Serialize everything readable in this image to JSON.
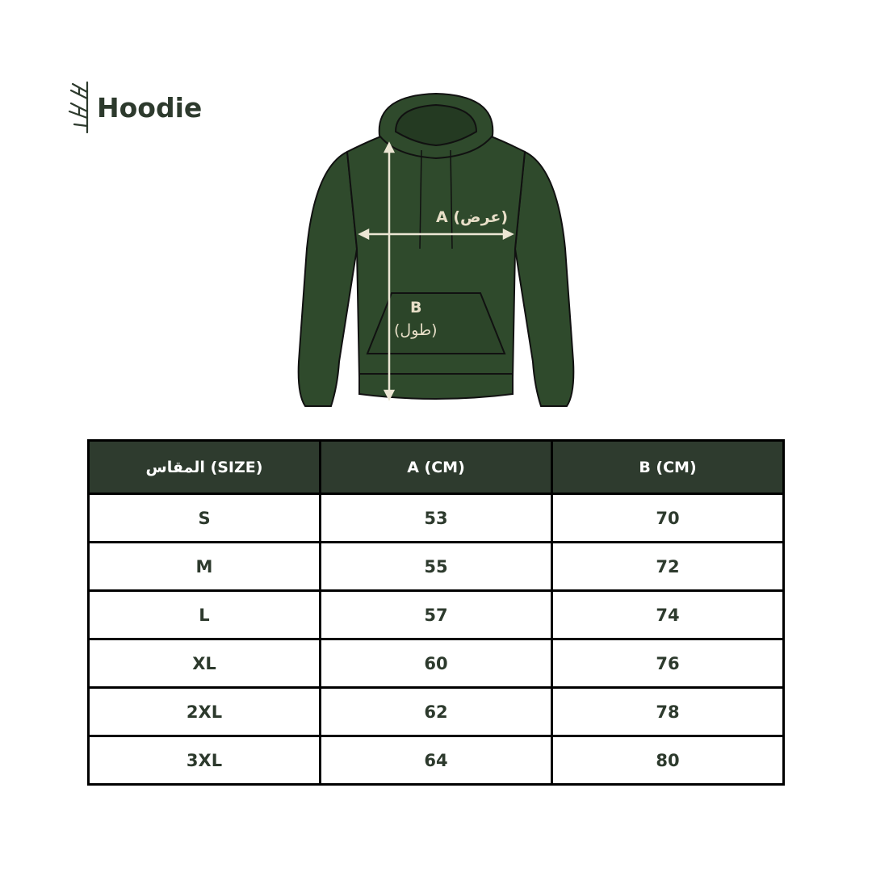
{
  "brand": {
    "name": "Hoodie",
    "logo_icon": "branch-icon"
  },
  "illustration": {
    "label_a": "A (عرض)",
    "label_b": "B",
    "label_b_sub": "(طول)",
    "garment_color": "#2f4a2c"
  },
  "table": {
    "header_color": "#2e3b2e",
    "headers": [
      "المقاس (SIZE)",
      "A (CM)",
      "B (CM)"
    ],
    "rows": [
      [
        "S",
        "53",
        "70"
      ],
      [
        "M",
        "55",
        "72"
      ],
      [
        "L",
        "57",
        "74"
      ],
      [
        "XL",
        "60",
        "76"
      ],
      [
        "2XL",
        "62",
        "78"
      ],
      [
        "3XL",
        "64",
        "80"
      ]
    ]
  }
}
